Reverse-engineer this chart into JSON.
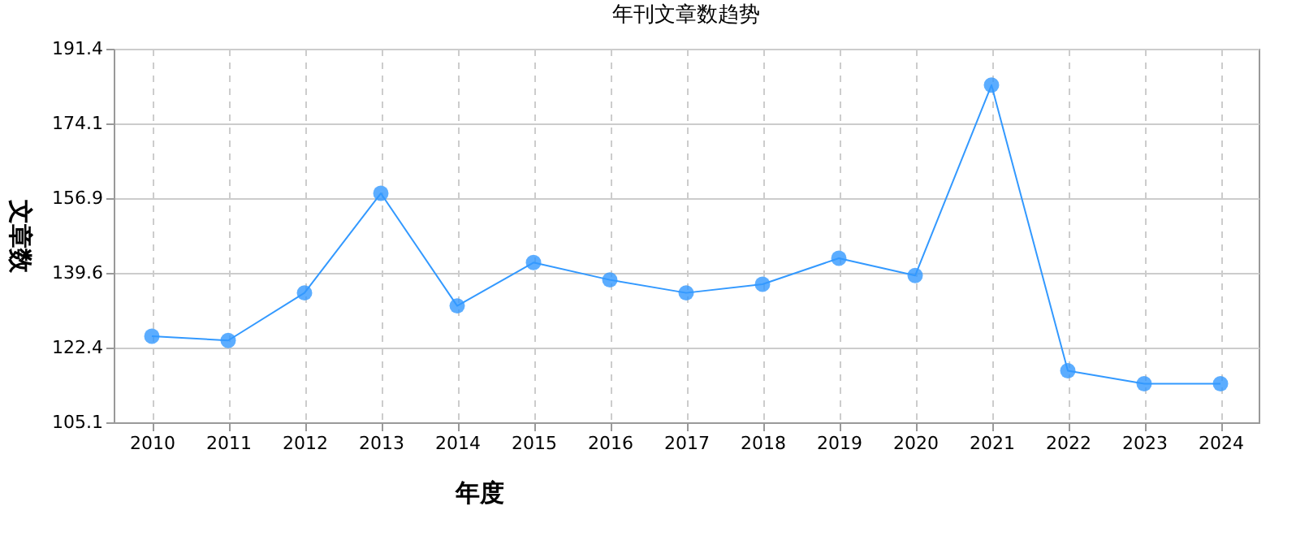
{
  "chart_data": {
    "type": "line",
    "title": "年刊文章数趋势",
    "xlabel": "年度",
    "ylabel": "文章数",
    "categories": [
      "2010",
      "2011",
      "2012",
      "2013",
      "2014",
      "2015",
      "2016",
      "2017",
      "2018",
      "2019",
      "2020",
      "2021",
      "2022",
      "2023",
      "2024"
    ],
    "series": [
      {
        "color": "#3399ff",
        "values": [
          125,
          124,
          135,
          158,
          132,
          142,
          138,
          135,
          137,
          143,
          139,
          183,
          117,
          114,
          114
        ]
      }
    ],
    "ylim": [
      105.1,
      191.4
    ],
    "yticks": [
      105.1,
      122.4,
      139.6,
      156.9,
      174.1,
      191.4
    ],
    "grid": true,
    "marker": "circle"
  }
}
